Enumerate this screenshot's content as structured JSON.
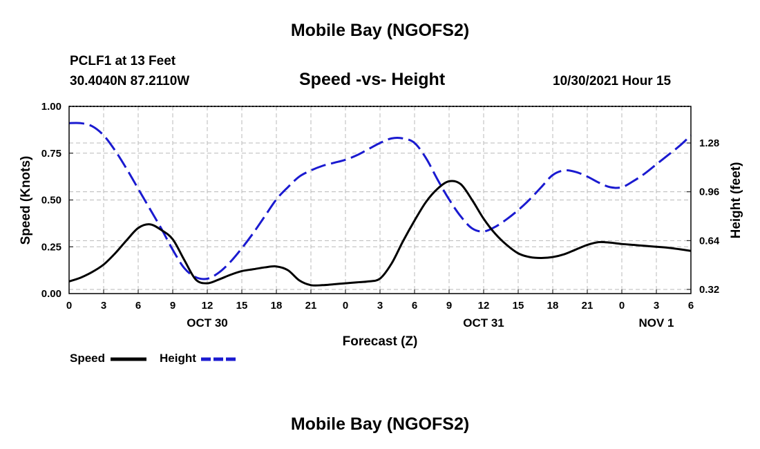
{
  "header": {
    "main_title": "Mobile Bay (NGOFS2)",
    "station": "PCLF1 at 13 Feet",
    "coords": "30.4040N  87.2110W",
    "subtitle": "Speed -vs- Height",
    "timestamp": "10/30/2021 Hour 15",
    "footer_title": "Mobile Bay (NGOFS2)"
  },
  "legend": {
    "speed_label": "Speed",
    "height_label": "Height"
  },
  "colors": {
    "speed": "#000000",
    "height": "#1a1ad0",
    "grid": "#b8b8b8"
  },
  "chart_data": {
    "type": "line",
    "title": "Speed -vs- Height",
    "xlabel": "Forecast (Z)",
    "ylabel": "Speed (Knots)",
    "y2label": "Height (feet)",
    "xlim": [
      0,
      54
    ],
    "ylim": [
      0,
      1.0
    ],
    "y2lim": [
      0.2927,
      1.52
    ],
    "grid": true,
    "x_ticks": [
      0,
      3,
      6,
      9,
      12,
      15,
      18,
      21,
      24,
      27,
      30,
      33,
      36,
      39,
      42,
      45,
      48,
      51,
      54
    ],
    "x_tick_labels": [
      "0",
      "3",
      "6",
      "9",
      "12",
      "15",
      "18",
      "21",
      "0",
      "3",
      "6",
      "9",
      "12",
      "15",
      "18",
      "21",
      "0",
      "3",
      "6"
    ],
    "date_labels": [
      {
        "x": 12,
        "label": "OCT 30"
      },
      {
        "x": 36,
        "label": "OCT 31"
      },
      {
        "x": 51,
        "label": "NOV 1"
      }
    ],
    "y_ticks": [
      0,
      0.25,
      0.5,
      0.75,
      1.0
    ],
    "y_tick_labels": [
      "0.00",
      "0.25",
      "0.50",
      "0.75",
      "1.00"
    ],
    "y2_ticks": [
      0.32,
      0.64,
      0.96,
      1.28
    ],
    "y2_tick_labels": [
      "0.32",
      "0.64",
      "0.96",
      "1.28"
    ],
    "series": [
      {
        "name": "Speed",
        "axis": "left",
        "style": "solid",
        "x": [
          0,
          1,
          2,
          3,
          4,
          5,
          6,
          7,
          8,
          9,
          10,
          11,
          12,
          13,
          14,
          15,
          16,
          17,
          18,
          19,
          20,
          21,
          22,
          23,
          24,
          25,
          26,
          27,
          28,
          29,
          30,
          31,
          32,
          33,
          34,
          35,
          36,
          37,
          38,
          39,
          40,
          41,
          42,
          43,
          44,
          45,
          46,
          47,
          48,
          49,
          50,
          51,
          52,
          53,
          54
        ],
        "values": [
          0.065,
          0.085,
          0.115,
          0.155,
          0.215,
          0.285,
          0.35,
          0.37,
          0.34,
          0.29,
          0.18,
          0.075,
          0.055,
          0.075,
          0.1,
          0.12,
          0.13,
          0.14,
          0.145,
          0.125,
          0.07,
          0.045,
          0.045,
          0.05,
          0.055,
          0.06,
          0.065,
          0.08,
          0.16,
          0.28,
          0.39,
          0.49,
          0.56,
          0.6,
          0.585,
          0.5,
          0.4,
          0.32,
          0.26,
          0.215,
          0.195,
          0.19,
          0.195,
          0.21,
          0.235,
          0.26,
          0.275,
          0.272,
          0.265,
          0.26,
          0.255,
          0.25,
          0.245,
          0.237,
          0.228
        ]
      },
      {
        "name": "Height",
        "axis": "right",
        "style": "dashed",
        "x": [
          0,
          1,
          2,
          3,
          4,
          5,
          6,
          7,
          8,
          9,
          10,
          11,
          12,
          13,
          14,
          15,
          16,
          17,
          18,
          19,
          20,
          21,
          22,
          23,
          24,
          25,
          26,
          27,
          28,
          29,
          30,
          31,
          32,
          33,
          34,
          35,
          36,
          37,
          38,
          39,
          40,
          41,
          42,
          43,
          44,
          45,
          46,
          47,
          48,
          49,
          50,
          51,
          52,
          53,
          54
        ],
        "values": [
          1.41,
          1.41,
          1.39,
          1.33,
          1.23,
          1.11,
          0.98,
          0.85,
          0.72,
          0.58,
          0.46,
          0.4,
          0.39,
          0.43,
          0.5,
          0.59,
          0.69,
          0.8,
          0.91,
          0.99,
          1.06,
          1.1,
          1.13,
          1.15,
          1.17,
          1.2,
          1.24,
          1.28,
          1.31,
          1.31,
          1.28,
          1.18,
          1.04,
          0.91,
          0.8,
          0.72,
          0.7,
          0.73,
          0.78,
          0.84,
          0.91,
          0.99,
          1.07,
          1.1,
          1.09,
          1.06,
          1.02,
          0.99,
          0.99,
          1.03,
          1.08,
          1.14,
          1.2,
          1.26,
          1.33
        ]
      }
    ]
  }
}
